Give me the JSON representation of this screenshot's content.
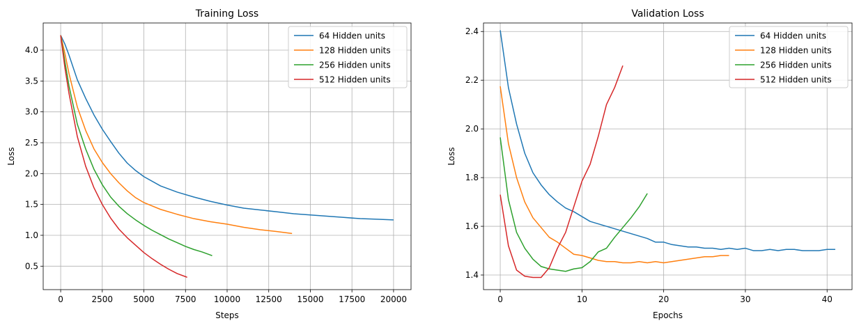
{
  "series_colors": [
    "#1f77b4",
    "#ff7f0e",
    "#2ca02c",
    "#d62728"
  ],
  "chart_data": [
    {
      "type": "line",
      "title": "Training Loss",
      "xlabel": "Steps",
      "ylabel": "Loss",
      "xlim": [
        -1050,
        21050
      ],
      "ylim": [
        0.12,
        4.44
      ],
      "xticks": [
        0,
        2500,
        5000,
        7500,
        10000,
        12500,
        15000,
        17500,
        20000
      ],
      "xtick_labels": [
        "0",
        "2500",
        "5000",
        "7500",
        "10000",
        "12500",
        "15000",
        "17500",
        "20000"
      ],
      "yticks": [
        0.5,
        1.0,
        1.5,
        2.0,
        2.5,
        3.0,
        3.5,
        4.0
      ],
      "ytick_labels": [
        "0.5",
        "1.0",
        "1.5",
        "2.0",
        "2.5",
        "3.0",
        "3.5",
        "4.0"
      ],
      "grid": true,
      "legend": "top-right",
      "series": [
        {
          "name": "64 Hidden units",
          "x": [
            0,
            250,
            500,
            1000,
            1500,
            2000,
            2500,
            3000,
            3500,
            4000,
            4500,
            5000,
            6000,
            7000,
            8000,
            9000,
            10000,
            11000,
            12000,
            13000,
            14000,
            15000,
            16000,
            17000,
            18000,
            19000,
            20000
          ],
          "y": [
            4.24,
            4.1,
            3.92,
            3.52,
            3.22,
            2.95,
            2.72,
            2.52,
            2.33,
            2.17,
            2.05,
            1.95,
            1.8,
            1.7,
            1.62,
            1.55,
            1.49,
            1.44,
            1.41,
            1.38,
            1.35,
            1.33,
            1.31,
            1.29,
            1.27,
            1.26,
            1.25
          ]
        },
        {
          "name": "128 Hidden units",
          "x": [
            0,
            250,
            500,
            1000,
            1500,
            2000,
            2500,
            3000,
            3500,
            4000,
            4500,
            5000,
            6000,
            7000,
            8000,
            9000,
            10000,
            11000,
            12000,
            13000,
            13900
          ],
          "y": [
            4.24,
            3.95,
            3.62,
            3.08,
            2.7,
            2.4,
            2.18,
            2.0,
            1.85,
            1.72,
            1.61,
            1.53,
            1.42,
            1.34,
            1.27,
            1.22,
            1.18,
            1.13,
            1.09,
            1.06,
            1.03
          ]
        },
        {
          "name": "256 Hidden units",
          "x": [
            0,
            250,
            500,
            1000,
            1500,
            2000,
            2500,
            3000,
            3500,
            4000,
            4500,
            5000,
            5500,
            6000,
            6500,
            7000,
            7500,
            8000,
            8500,
            9000,
            9100
          ],
          "y": [
            4.24,
            3.82,
            3.42,
            2.8,
            2.4,
            2.07,
            1.82,
            1.62,
            1.47,
            1.35,
            1.25,
            1.16,
            1.08,
            1.01,
            0.94,
            0.88,
            0.82,
            0.77,
            0.73,
            0.68,
            0.67
          ]
        },
        {
          "name": "512 Hidden units",
          "x": [
            0,
            250,
            500,
            1000,
            1500,
            2000,
            2500,
            3000,
            3500,
            4000,
            4500,
            5000,
            5500,
            6000,
            6500,
            7000,
            7500,
            7600
          ],
          "y": [
            4.24,
            3.72,
            3.3,
            2.6,
            2.12,
            1.77,
            1.5,
            1.28,
            1.1,
            0.96,
            0.84,
            0.72,
            0.62,
            0.53,
            0.45,
            0.38,
            0.33,
            0.32
          ]
        }
      ]
    },
    {
      "type": "line",
      "title": "Validation Loss",
      "xlabel": "Epochs",
      "ylabel": "Loss",
      "xlim": [
        -2.05,
        43.05
      ],
      "ylim": [
        1.34,
        2.435
      ],
      "xticks": [
        0,
        10,
        20,
        30,
        40
      ],
      "xtick_labels": [
        "0",
        "10",
        "20",
        "30",
        "40"
      ],
      "yticks": [
        1.4,
        1.6,
        1.8,
        2.0,
        2.2,
        2.4
      ],
      "ytick_labels": [
        "1.4",
        "1.6",
        "1.8",
        "2.0",
        "2.2",
        "2.4"
      ],
      "grid": true,
      "legend": "top-right",
      "series": [
        {
          "name": "64 Hidden units",
          "x": [
            0,
            1,
            2,
            3,
            4,
            5,
            6,
            7,
            8,
            9,
            10,
            11,
            12,
            13,
            14,
            15,
            16,
            17,
            18,
            19,
            20,
            21,
            22,
            23,
            24,
            25,
            26,
            27,
            28,
            29,
            30,
            31,
            32,
            33,
            34,
            35,
            36,
            37,
            38,
            39,
            40,
            41
          ],
          "y": [
            2.405,
            2.17,
            2.02,
            1.9,
            1.82,
            1.77,
            1.73,
            1.7,
            1.675,
            1.66,
            1.64,
            1.62,
            1.61,
            1.6,
            1.59,
            1.58,
            1.57,
            1.56,
            1.55,
            1.535,
            1.535,
            1.525,
            1.52,
            1.515,
            1.515,
            1.51,
            1.51,
            1.505,
            1.51,
            1.505,
            1.51,
            1.5,
            1.5,
            1.505,
            1.5,
            1.505,
            1.505,
            1.5,
            1.5,
            1.5,
            1.505,
            1.505
          ]
        },
        {
          "name": "128 Hidden units",
          "x": [
            0,
            1,
            2,
            3,
            4,
            5,
            6,
            7,
            8,
            9,
            10,
            11,
            12,
            13,
            14,
            15,
            16,
            17,
            18,
            19,
            20,
            21,
            22,
            23,
            24,
            25,
            26,
            27,
            28
          ],
          "y": [
            2.175,
            1.94,
            1.8,
            1.7,
            1.635,
            1.595,
            1.555,
            1.535,
            1.51,
            1.485,
            1.48,
            1.47,
            1.46,
            1.455,
            1.455,
            1.45,
            1.45,
            1.455,
            1.45,
            1.455,
            1.45,
            1.455,
            1.46,
            1.465,
            1.47,
            1.475,
            1.475,
            1.48,
            1.48
          ]
        },
        {
          "name": "256 Hidden units",
          "x": [
            0,
            1,
            2,
            3,
            4,
            5,
            6,
            7,
            8,
            9,
            10,
            11,
            12,
            13,
            14,
            15,
            16,
            17,
            18
          ],
          "y": [
            1.965,
            1.71,
            1.575,
            1.51,
            1.465,
            1.435,
            1.425,
            1.42,
            1.415,
            1.425,
            1.43,
            1.455,
            1.495,
            1.51,
            1.555,
            1.595,
            1.635,
            1.68,
            1.735
          ]
        },
        {
          "name": "512 Hidden units",
          "x": [
            0,
            1,
            2,
            3,
            4,
            5,
            6,
            7,
            8,
            9,
            10,
            11,
            12,
            13,
            14,
            15
          ],
          "y": [
            1.73,
            1.52,
            1.42,
            1.395,
            1.39,
            1.39,
            1.43,
            1.51,
            1.575,
            1.68,
            1.785,
            1.855,
            1.97,
            2.1,
            2.17,
            2.26
          ]
        }
      ]
    }
  ]
}
